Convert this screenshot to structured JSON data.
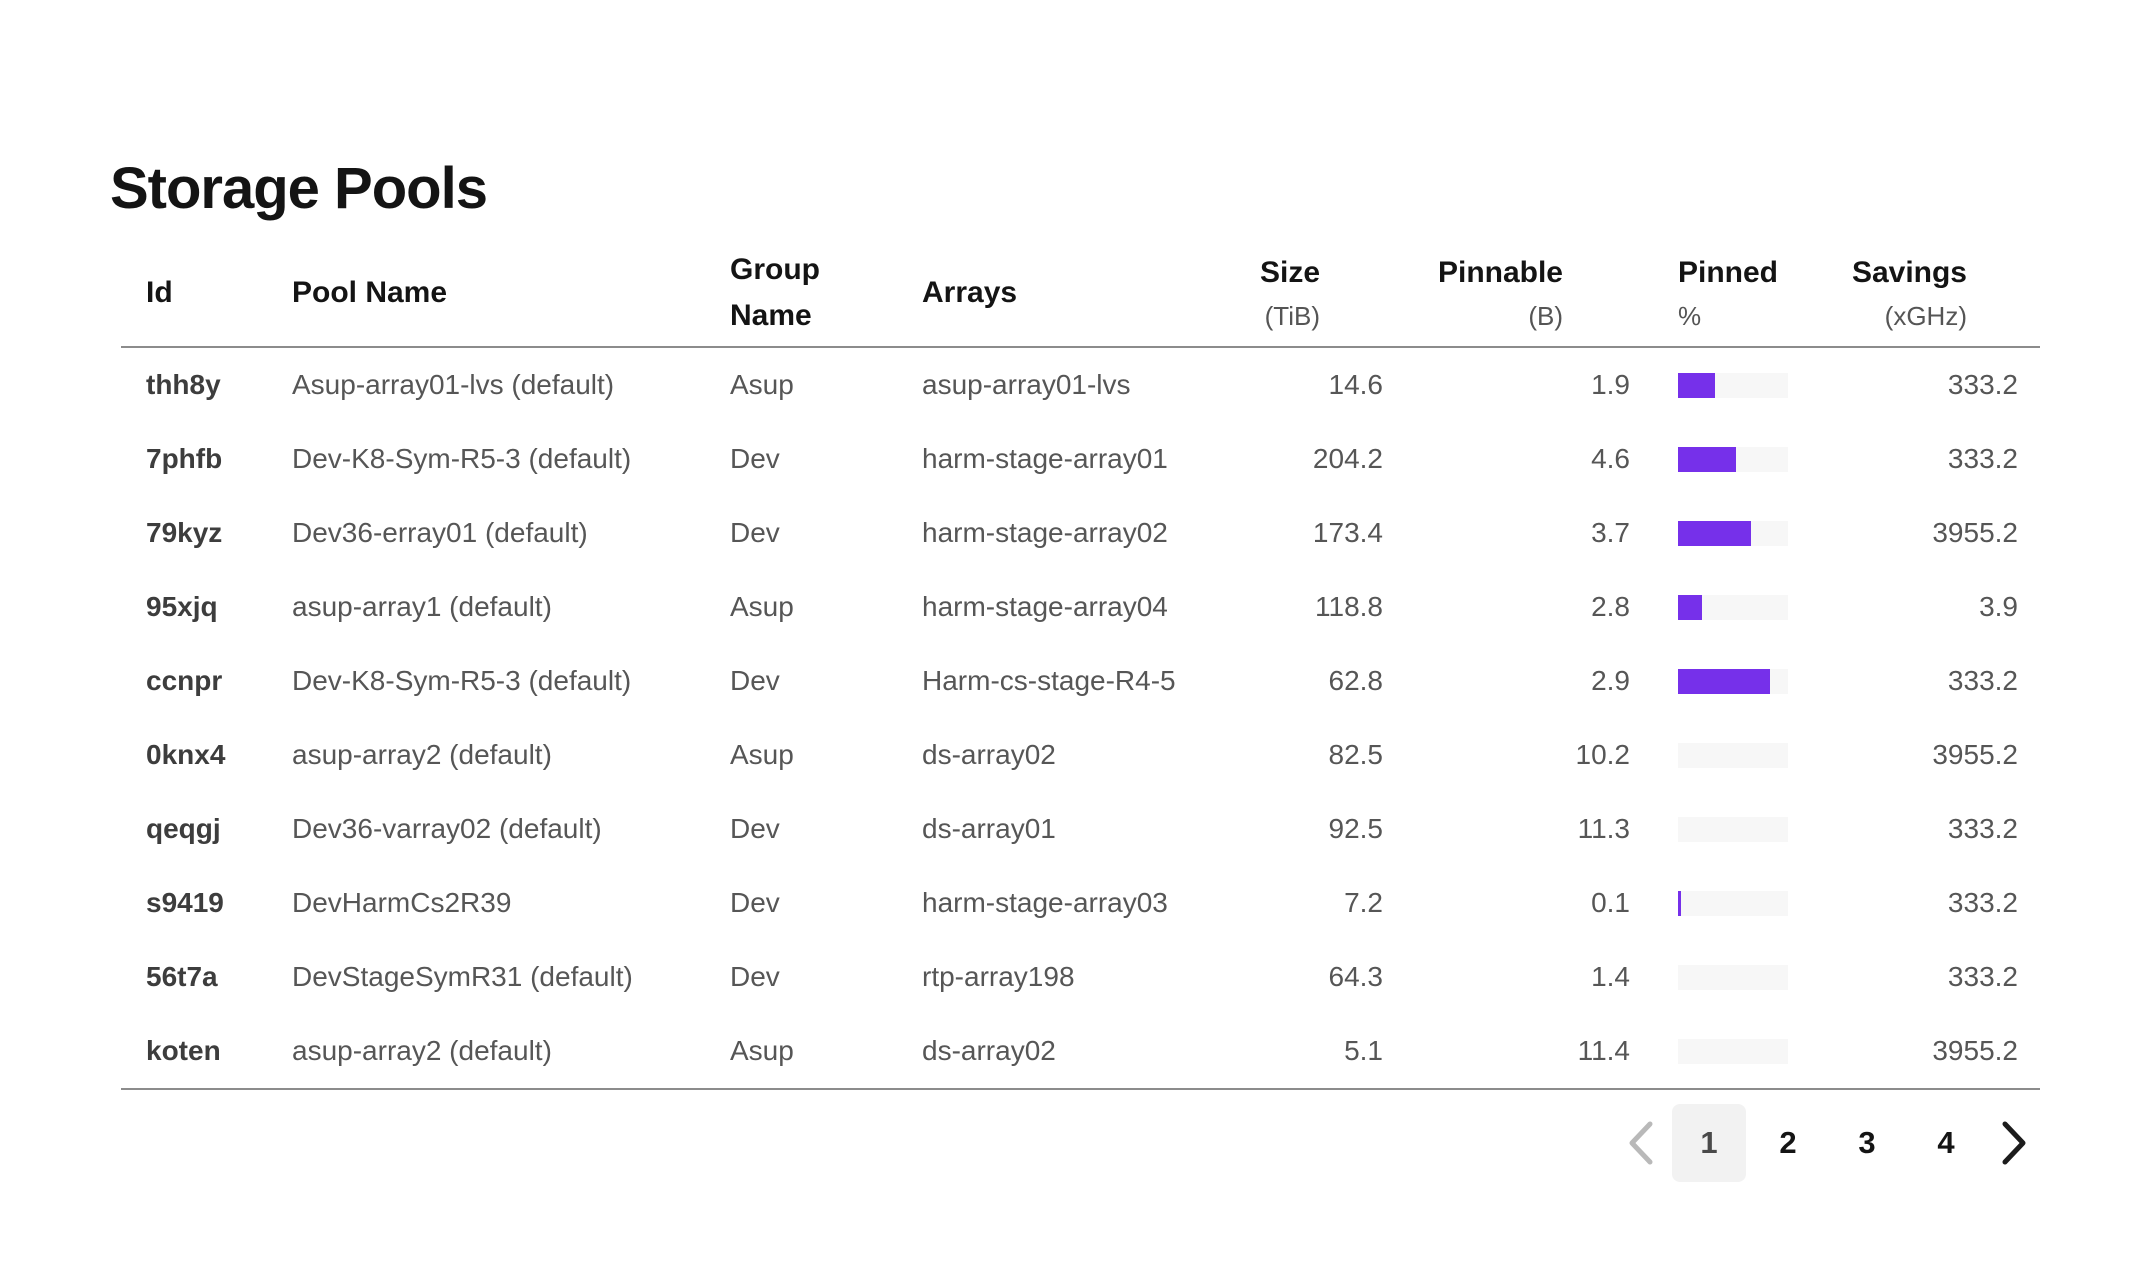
{
  "page_title": "Storage Pools",
  "table": {
    "columns": [
      {
        "key": "id",
        "label": "Id",
        "sub": "",
        "align": "left"
      },
      {
        "key": "pool_name",
        "label": "Pool Name",
        "sub": "",
        "align": "left"
      },
      {
        "key": "group_name",
        "label": "Group Name",
        "sub": "",
        "align": "left"
      },
      {
        "key": "arrays",
        "label": "Arrays",
        "sub": "",
        "align": "left"
      },
      {
        "key": "size",
        "label": "Size",
        "sub": "(TiB)",
        "align": "right"
      },
      {
        "key": "pinnable",
        "label": "Pinnable",
        "sub": "(B)",
        "align": "right"
      },
      {
        "key": "pinned",
        "label": "Pinned",
        "sub": "%",
        "align": "left"
      },
      {
        "key": "savings",
        "label": "Savings",
        "sub": "(xGHz)",
        "align": "right"
      }
    ],
    "rows": [
      {
        "id": "thh8y",
        "pool_name": "Asup-array01-lvs (default)",
        "group_name": "Asup",
        "arrays": "asup-array01-lvs",
        "size": "14.6",
        "pinnable": "1.9",
        "pinned_pct": 34,
        "savings": "333.2"
      },
      {
        "id": "7phfb",
        "pool_name": "Dev-K8-Sym-R5-3 (default)",
        "group_name": "Dev",
        "arrays": "harm-stage-array01",
        "size": "204.2",
        "pinnable": "4.6",
        "pinned_pct": 53,
        "savings": "333.2"
      },
      {
        "id": "79kyz",
        "pool_name": "Dev36-erray01 (default)",
        "group_name": "Dev",
        "arrays": "harm-stage-array02",
        "size": "173.4",
        "pinnable": "3.7",
        "pinned_pct": 66,
        "savings": "3955.2"
      },
      {
        "id": "95xjq",
        "pool_name": "asup-array1 (default)",
        "group_name": "Asup",
        "arrays": "harm-stage-array04",
        "size": "118.8",
        "pinnable": "2.8",
        "pinned_pct": 22,
        "savings": "3.9"
      },
      {
        "id": "ccnpr",
        "pool_name": "Dev-K8-Sym-R5-3 (default)",
        "group_name": "Dev",
        "arrays": "Harm-cs-stage-R4-5",
        "size": "62.8",
        "pinnable": "2.9",
        "pinned_pct": 84,
        "savings": "333.2"
      },
      {
        "id": "0knx4",
        "pool_name": "asup-array2 (default)",
        "group_name": "Asup",
        "arrays": "ds-array02",
        "size": "82.5",
        "pinnable": "10.2",
        "pinned_pct": 0,
        "savings": "3955.2"
      },
      {
        "id": "qeqgj",
        "pool_name": "Dev36-varray02 (default)",
        "group_name": "Dev",
        "arrays": "ds-array01",
        "size": "92.5",
        "pinnable": "11.3",
        "pinned_pct": 0,
        "savings": "333.2"
      },
      {
        "id": "s9419",
        "pool_name": "DevHarmCs2R39",
        "group_name": "Dev",
        "arrays": "harm-stage-array03",
        "size": "7.2",
        "pinnable": "0.1",
        "pinned_pct": 3,
        "savings": "333.2"
      },
      {
        "id": "56t7a",
        "pool_name": "DevStageSymR31 (default)",
        "group_name": "Dev",
        "arrays": "rtp-array198",
        "size": "64.3",
        "pinnable": "1.4",
        "pinned_pct": 0,
        "savings": "333.2"
      },
      {
        "id": "koten",
        "pool_name": "asup-array2 (default)",
        "group_name": "Asup",
        "arrays": "ds-array02",
        "size": "5.1",
        "pinnable": "11.4",
        "pinned_pct": 0,
        "savings": "3955.2"
      }
    ]
  },
  "pagination": {
    "pages": [
      "1",
      "2",
      "3",
      "4"
    ],
    "active_page": "1",
    "prev_enabled": false,
    "next_enabled": true
  },
  "colors": {
    "accent_purple": "#7630ea",
    "bar_track": "#f7f7f7",
    "border_gray": "#8c8c8c",
    "active_page_bg": "#f2f2f2",
    "disabled_chevron": "#b9b9b9"
  }
}
